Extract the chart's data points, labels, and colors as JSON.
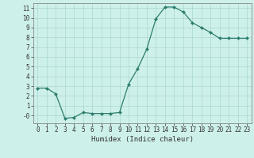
{
  "x": [
    0,
    1,
    2,
    3,
    4,
    5,
    6,
    7,
    8,
    9,
    10,
    11,
    12,
    13,
    14,
    15,
    16,
    17,
    18,
    19,
    20,
    21,
    22,
    23
  ],
  "y": [
    2.8,
    2.8,
    2.2,
    -0.3,
    -0.2,
    0.3,
    0.2,
    0.2,
    0.2,
    0.3,
    3.2,
    4.8,
    6.8,
    9.9,
    11.1,
    11.1,
    10.6,
    9.5,
    9.0,
    8.5,
    7.9,
    7.9,
    7.9,
    7.9
  ],
  "line_color": "#2d7d6e",
  "marker": "D",
  "marker_size": 2.0,
  "bg_color": "#cef0ea",
  "grid_color": "#a8d8d0",
  "xlabel": "Humidex (Indice chaleur)",
  "xlim": [
    -0.5,
    23.5
  ],
  "ylim": [
    -0.8,
    11.5
  ],
  "yticks": [
    0,
    1,
    2,
    3,
    4,
    5,
    6,
    7,
    8,
    9,
    10,
    11
  ],
  "xticks": [
    0,
    1,
    2,
    3,
    4,
    5,
    6,
    7,
    8,
    9,
    10,
    11,
    12,
    13,
    14,
    15,
    16,
    17,
    18,
    19,
    20,
    21,
    22,
    23
  ],
  "xtick_labels": [
    "0",
    "1",
    "2",
    "3",
    "4",
    "5",
    "6",
    "7",
    "8",
    "9",
    "10",
    "11",
    "12",
    "13",
    "14",
    "15",
    "16",
    "17",
    "18",
    "19",
    "20",
    "21",
    "22",
    "23"
  ],
  "ytick_labels": [
    "-0",
    "1",
    "2",
    "3",
    "4",
    "5",
    "6",
    "7",
    "8",
    "9",
    "10",
    "11"
  ],
  "spine_color": "#888888",
  "tick_color": "#333333",
  "label_fontsize": 6.5,
  "tick_fontsize": 5.5
}
